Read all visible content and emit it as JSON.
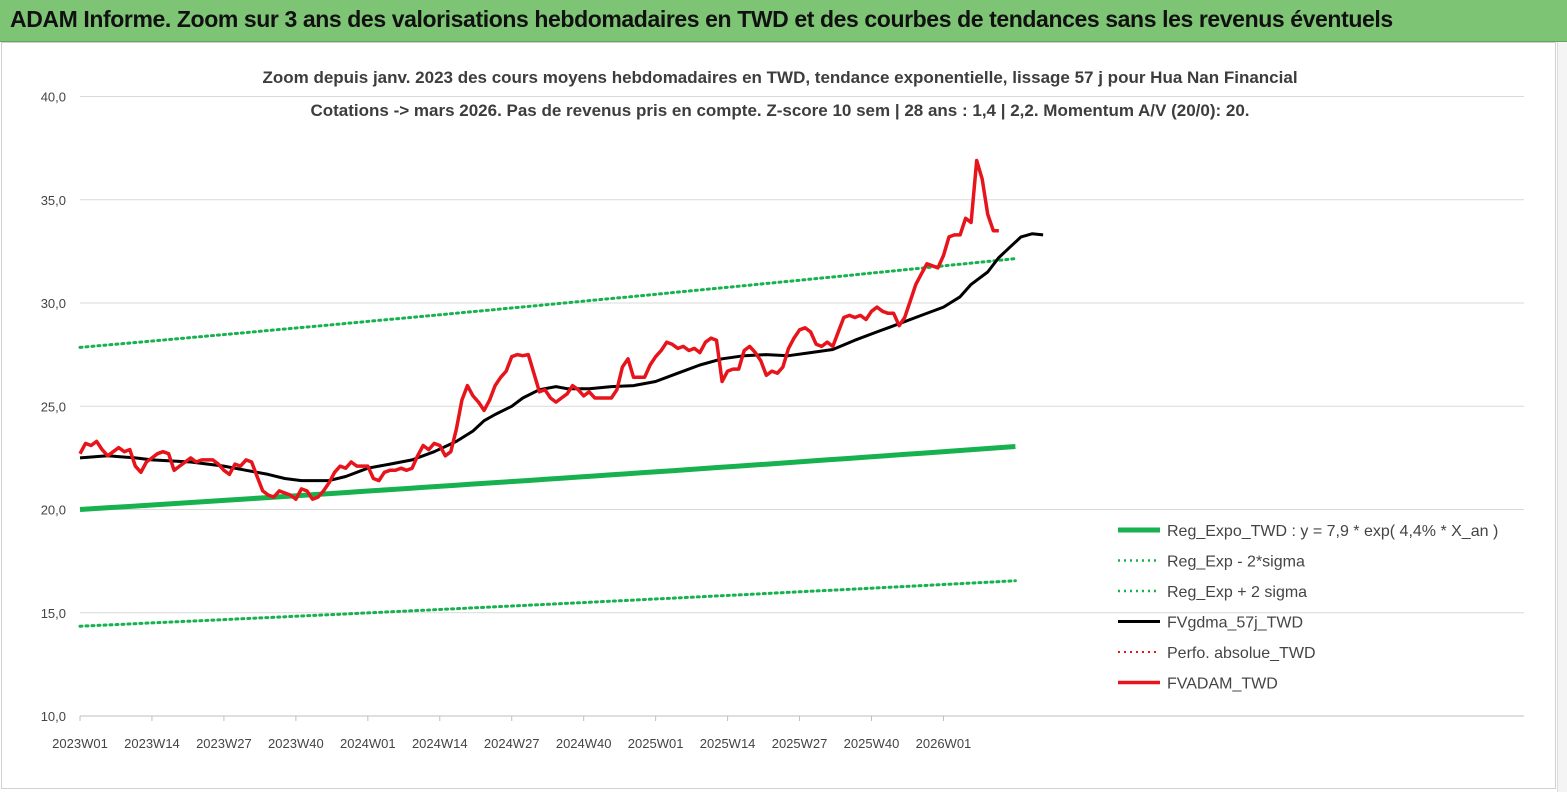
{
  "header": {
    "title": "ADAM Informe. Zoom sur 3 ans des valorisations hebdomadaires en TWD et des courbes de tendances sans les revenus éventuels"
  },
  "colors": {
    "header_bg": "#7dc474",
    "green": "#17b24f",
    "black": "#000000",
    "red": "#e8141b",
    "grid": "#d9d9d9"
  },
  "chart_data": {
    "type": "line",
    "title": "Zoom depuis janv. 2023 des cours moyens hebdomadaires en TWD, tendance exponentielle, lissage 57 j pour Hua Nan Financial",
    "subtitle": "Cotations -> mars 2026. Pas de revenus pris en compte. Z-score 10 sem | 28 ans : 1,4 | 2,2. Momentum A/V (20/0): 20.",
    "xlabel": "",
    "ylabel": "",
    "ylim": [
      10,
      40
    ],
    "yticks": [
      "10,0",
      "15,0",
      "20,0",
      "25,0",
      "30,0",
      "35,0",
      "40,0"
    ],
    "x_ticks": [
      "2023W01",
      "2023W14",
      "2023W27",
      "2023W40",
      "2024W01",
      "2024W14",
      "2024W27",
      "2024W40",
      "2025W01",
      "2025W14",
      "2025W27",
      "2025W40",
      "2026W01"
    ],
    "weeks_total": 170,
    "grid": "horizontal",
    "legend_position": "bottom-right",
    "series": [
      {
        "name": "Reg_Expo_TWD : y = 7,9 * exp( 4,4% *  X_an )",
        "color": "#17b24f",
        "style": "solid",
        "width": 5,
        "points": [
          [
            0,
            20.0
          ],
          [
            169,
            23.05
          ]
        ]
      },
      {
        "name": "Reg_Exp - 2*sigma",
        "color": "#17b24f",
        "style": "dotted",
        "width": 3,
        "points": [
          [
            0,
            27.85
          ],
          [
            169,
            32.15
          ]
        ]
      },
      {
        "name": "Reg_Exp + 2 sigma",
        "color": "#17b24f",
        "style": "dotted",
        "width": 3,
        "points": [
          [
            0,
            14.35
          ],
          [
            169,
            16.55
          ]
        ]
      },
      {
        "name": "FVgdma_57j_TWD",
        "color": "#000000",
        "style": "solid",
        "width": 3,
        "points": [
          [
            0,
            22.5
          ],
          [
            5,
            22.6
          ],
          [
            10,
            22.5
          ],
          [
            13,
            22.4
          ],
          [
            20,
            22.3
          ],
          [
            26,
            22.1
          ],
          [
            30,
            21.9
          ],
          [
            34,
            21.7
          ],
          [
            37,
            21.5
          ],
          [
            40,
            21.4
          ],
          [
            45,
            21.4
          ],
          [
            48,
            21.6
          ],
          [
            52,
            22.0
          ],
          [
            56,
            22.2
          ],
          [
            60,
            22.4
          ],
          [
            64,
            22.8
          ],
          [
            68,
            23.3
          ],
          [
            71,
            23.8
          ],
          [
            73,
            24.3
          ],
          [
            75,
            24.6
          ],
          [
            78,
            25.0
          ],
          [
            80,
            25.4
          ],
          [
            83,
            25.8
          ],
          [
            86,
            25.95
          ],
          [
            88,
            25.85
          ],
          [
            92,
            25.85
          ],
          [
            96,
            25.95
          ],
          [
            100,
            26.0
          ],
          [
            104,
            26.2
          ],
          [
            108,
            26.6
          ],
          [
            112,
            27.0
          ],
          [
            116,
            27.3
          ],
          [
            120,
            27.45
          ],
          [
            124,
            27.5
          ],
          [
            128,
            27.45
          ],
          [
            132,
            27.6
          ],
          [
            136,
            27.75
          ],
          [
            140,
            28.2
          ],
          [
            144,
            28.6
          ],
          [
            148,
            29.0
          ],
          [
            152,
            29.4
          ],
          [
            156,
            29.8
          ],
          [
            159,
            30.3
          ],
          [
            161,
            30.9
          ],
          [
            164,
            31.5
          ],
          [
            166,
            32.2
          ],
          [
            168,
            32.7
          ],
          [
            170,
            33.2
          ],
          [
            172,
            33.35
          ],
          [
            174,
            33.3
          ]
        ]
      },
      {
        "name": "Perfo. absolue_TWD",
        "color": "#e8141b",
        "style": "dotted",
        "width": 2,
        "points": []
      },
      {
        "name": "FVADAM_TWD",
        "color": "#e8141b",
        "style": "solid",
        "width": 3.5,
        "points": [
          [
            0,
            22.7
          ],
          [
            1,
            23.2
          ],
          [
            2,
            23.1
          ],
          [
            3,
            23.3
          ],
          [
            4,
            22.9
          ],
          [
            5,
            22.6
          ],
          [
            6,
            22.8
          ],
          [
            7,
            23.0
          ],
          [
            8,
            22.8
          ],
          [
            9,
            22.9
          ],
          [
            10,
            22.1
          ],
          [
            11,
            21.8
          ],
          [
            12,
            22.3
          ],
          [
            13,
            22.5
          ],
          [
            14,
            22.7
          ],
          [
            15,
            22.8
          ],
          [
            16,
            22.7
          ],
          [
            17,
            21.9
          ],
          [
            18,
            22.1
          ],
          [
            19,
            22.3
          ],
          [
            20,
            22.5
          ],
          [
            21,
            22.3
          ],
          [
            22,
            22.4
          ],
          [
            23,
            22.4
          ],
          [
            24,
            22.4
          ],
          [
            25,
            22.2
          ],
          [
            26,
            21.9
          ],
          [
            27,
            21.7
          ],
          [
            28,
            22.2
          ],
          [
            29,
            22.1
          ],
          [
            30,
            22.4
          ],
          [
            31,
            22.3
          ],
          [
            32,
            21.6
          ],
          [
            33,
            20.9
          ],
          [
            34,
            20.7
          ],
          [
            35,
            20.6
          ],
          [
            36,
            20.9
          ],
          [
            37,
            20.8
          ],
          [
            38,
            20.7
          ],
          [
            39,
            20.5
          ],
          [
            40,
            21.0
          ],
          [
            41,
            20.9
          ],
          [
            42,
            20.5
          ],
          [
            43,
            20.6
          ],
          [
            44,
            20.9
          ],
          [
            45,
            21.3
          ],
          [
            46,
            21.8
          ],
          [
            47,
            22.1
          ],
          [
            48,
            22.0
          ],
          [
            49,
            22.3
          ],
          [
            50,
            22.1
          ],
          [
            51,
            22.1
          ],
          [
            52,
            22.1
          ],
          [
            53,
            21.5
          ],
          [
            54,
            21.4
          ],
          [
            55,
            21.8
          ],
          [
            56,
            21.9
          ],
          [
            57,
            21.9
          ],
          [
            58,
            22.0
          ],
          [
            59,
            21.9
          ],
          [
            60,
            22.0
          ],
          [
            61,
            22.6
          ],
          [
            62,
            23.1
          ],
          [
            63,
            22.9
          ],
          [
            64,
            23.2
          ],
          [
            65,
            23.1
          ],
          [
            66,
            22.6
          ],
          [
            67,
            22.8
          ],
          [
            68,
            23.9
          ],
          [
            69,
            25.3
          ],
          [
            70,
            26.0
          ],
          [
            71,
            25.5
          ],
          [
            72,
            25.2
          ],
          [
            73,
            24.8
          ],
          [
            74,
            25.3
          ],
          [
            75,
            26.0
          ],
          [
            76,
            26.4
          ],
          [
            77,
            26.7
          ],
          [
            78,
            27.4
          ],
          [
            79,
            27.5
          ],
          [
            80,
            27.45
          ],
          [
            81,
            27.5
          ],
          [
            82,
            26.6
          ],
          [
            83,
            25.7
          ],
          [
            84,
            25.8
          ],
          [
            85,
            25.4
          ],
          [
            86,
            25.2
          ],
          [
            87,
            25.4
          ],
          [
            88,
            25.6
          ],
          [
            89,
            26.0
          ],
          [
            90,
            25.8
          ],
          [
            91,
            25.5
          ],
          [
            92,
            25.7
          ],
          [
            93,
            25.4
          ],
          [
            94,
            25.4
          ],
          [
            95,
            25.4
          ],
          [
            96,
            25.4
          ],
          [
            97,
            25.8
          ],
          [
            98,
            26.9
          ],
          [
            99,
            27.3
          ],
          [
            100,
            26.4
          ],
          [
            101,
            26.4
          ],
          [
            102,
            26.4
          ],
          [
            103,
            27.0
          ],
          [
            104,
            27.4
          ],
          [
            105,
            27.7
          ],
          [
            106,
            28.1
          ],
          [
            107,
            28.0
          ],
          [
            108,
            27.8
          ],
          [
            109,
            27.9
          ],
          [
            110,
            27.7
          ],
          [
            111,
            27.8
          ],
          [
            112,
            27.6
          ],
          [
            113,
            28.1
          ],
          [
            114,
            28.3
          ],
          [
            115,
            28.2
          ],
          [
            116,
            26.2
          ],
          [
            117,
            26.7
          ],
          [
            118,
            26.8
          ],
          [
            119,
            26.8
          ],
          [
            120,
            27.7
          ],
          [
            121,
            27.9
          ],
          [
            122,
            27.6
          ],
          [
            123,
            27.2
          ],
          [
            124,
            26.5
          ],
          [
            125,
            26.7
          ],
          [
            126,
            26.6
          ],
          [
            127,
            26.9
          ],
          [
            128,
            27.8
          ],
          [
            129,
            28.3
          ],
          [
            130,
            28.7
          ],
          [
            131,
            28.8
          ],
          [
            132,
            28.6
          ],
          [
            133,
            28.0
          ],
          [
            134,
            27.9
          ],
          [
            135,
            28.1
          ],
          [
            136,
            27.9
          ],
          [
            137,
            28.6
          ],
          [
            138,
            29.3
          ],
          [
            139,
            29.4
          ],
          [
            140,
            29.3
          ],
          [
            141,
            29.4
          ],
          [
            142,
            29.2
          ],
          [
            143,
            29.6
          ],
          [
            144,
            29.8
          ],
          [
            145,
            29.6
          ],
          [
            146,
            29.5
          ],
          [
            147,
            29.5
          ],
          [
            148,
            28.9
          ],
          [
            149,
            29.3
          ],
          [
            150,
            30.1
          ],
          [
            151,
            30.9
          ],
          [
            152,
            31.4
          ],
          [
            153,
            31.9
          ],
          [
            154,
            31.8
          ],
          [
            155,
            31.7
          ],
          [
            156,
            32.3
          ],
          [
            157,
            33.2
          ],
          [
            158,
            33.3
          ],
          [
            159,
            33.3
          ],
          [
            160,
            34.1
          ],
          [
            161,
            33.9
          ],
          [
            162,
            36.9
          ],
          [
            163,
            36.0
          ],
          [
            164,
            34.3
          ],
          [
            165,
            33.5
          ],
          [
            166,
            33.5
          ]
        ]
      }
    ]
  }
}
